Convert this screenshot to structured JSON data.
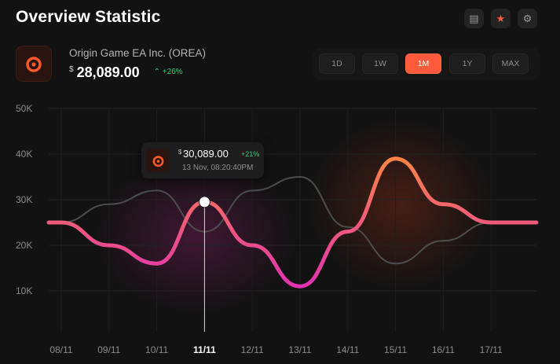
{
  "header": {
    "title": "Overview Statistic",
    "actions": [
      {
        "name": "document-icon",
        "glyph": "▤"
      },
      {
        "name": "star-icon",
        "glyph": "★"
      },
      {
        "name": "gear-icon",
        "glyph": "⚙"
      }
    ]
  },
  "asset": {
    "name": "Origin Game EA Inc. (OREA)",
    "currency_symbol": "$",
    "price": "28,089.00",
    "change": "+26%",
    "change_arrow": "⌃"
  },
  "range": {
    "options": [
      "1D",
      "1W",
      "1M",
      "1Y",
      "MAX"
    ],
    "selected": "1M"
  },
  "tooltip": {
    "currency_symbol": "$",
    "price": "30,089.00",
    "change": "+21%",
    "datetime": "13 Nov, 08:20:40PM"
  },
  "colors": {
    "background": "#121212",
    "accent": "#ff5a3c",
    "positive": "#32d07a",
    "line_start": "#ff8a3c",
    "line_end": "#e02fb5",
    "comparison_line": "#555555"
  },
  "chart_data": {
    "type": "line",
    "x": [
      "08/11",
      "09/11",
      "10/11",
      "11/11",
      "12/11",
      "13/11",
      "14/11",
      "15/11",
      "16/11",
      "17/11"
    ],
    "selected_x": "11/11",
    "y_ticks": [
      "50K",
      "40K",
      "30K",
      "20K",
      "10K"
    ],
    "ylim": [
      0,
      50000
    ],
    "grid": true,
    "series": [
      {
        "values": [
          25000,
          20000,
          16000,
          29500,
          20000,
          11000,
          23000,
          39000,
          29000,
          25000
        ]
      },
      {
        "values": [
          25000,
          29000,
          32000,
          23000,
          32000,
          35000,
          24000,
          16000,
          21000,
          25000
        ]
      }
    ]
  }
}
